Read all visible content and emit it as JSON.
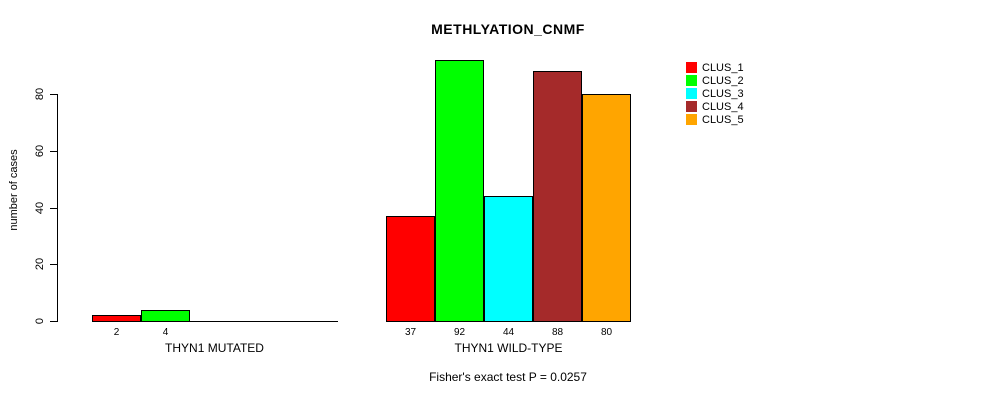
{
  "title": "METHLYATION_CNMF",
  "footer": "Fisher's exact test P = 0.0257",
  "chart_data": {
    "type": "bar",
    "title": "METHLYATION_CNMF",
    "ylabel": "number of cases",
    "yticks": [
      0,
      20,
      40,
      60,
      80
    ],
    "ylim": [
      0,
      92
    ],
    "grid": false,
    "legend_position": "top-right",
    "categories": [
      "CLUS_1",
      "CLUS_2",
      "CLUS_3",
      "CLUS_4",
      "CLUS_5"
    ],
    "series_colors": [
      "#FF0000",
      "#00FF00",
      "#00FFFF",
      "#A52A2A",
      "#FFA500"
    ],
    "groups": [
      {
        "label": "THYN1 MUTATED",
        "values": [
          2,
          4,
          0,
          0,
          0
        ],
        "value_labels": [
          "2",
          "4",
          "",
          "",
          ""
        ]
      },
      {
        "label": "THYN1 WILD-TYPE",
        "values": [
          37,
          92,
          44,
          88,
          80
        ],
        "value_labels": [
          "37",
          "92",
          "44",
          "88",
          "80"
        ]
      }
    ],
    "annotation": "Fisher's exact test P = 0.0257"
  }
}
